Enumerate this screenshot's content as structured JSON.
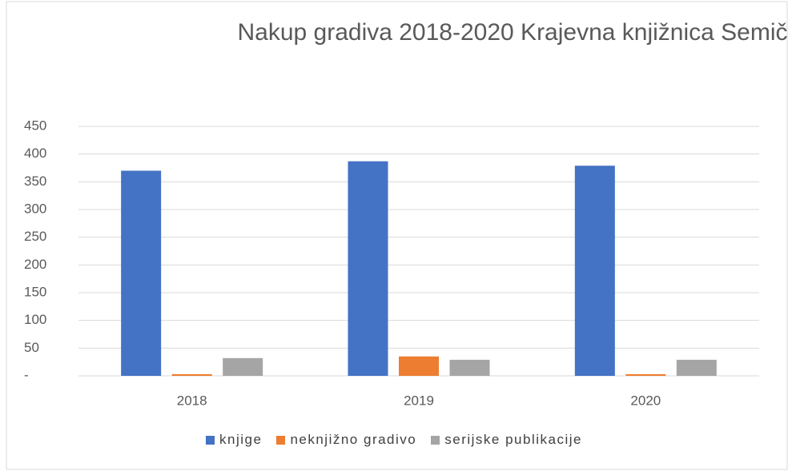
{
  "chart_data": {
    "type": "bar",
    "title": "Nakup gradiva 2018-2020 Krajevna knjižnica Semič",
    "categories": [
      "2018",
      "2019",
      "2020"
    ],
    "series": [
      {
        "name": "knjige",
        "color": "#4472c4",
        "values": [
          370,
          387,
          379
        ]
      },
      {
        "name": "neknjižno gradivo",
        "color": "#ed7d31",
        "values": [
          3,
          35,
          3
        ]
      },
      {
        "name": "serijske publikacije",
        "color": "#a5a5a5",
        "values": [
          32,
          29,
          29
        ]
      }
    ],
    "ylim": [
      0,
      450
    ],
    "yticks": [
      {
        "value": 0,
        "label": "-"
      },
      50,
      100,
      150,
      200,
      250,
      300,
      350,
      400,
      450
    ],
    "grid": true,
    "legend": "bottom"
  }
}
